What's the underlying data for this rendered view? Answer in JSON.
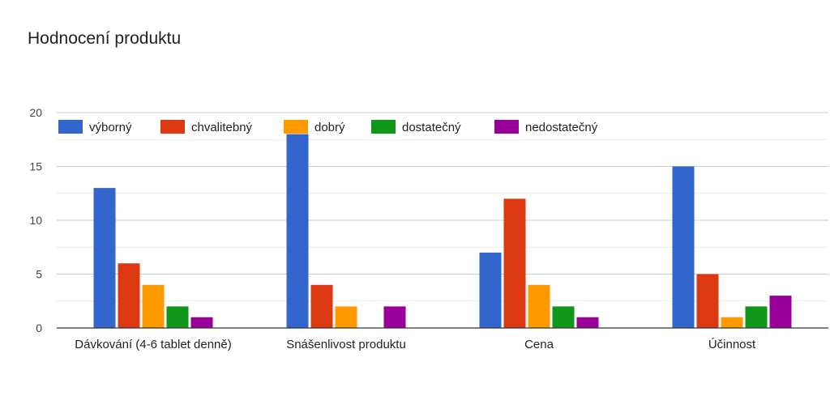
{
  "title": "Hodnocení produktu",
  "chart_data": {
    "type": "bar",
    "title": "Hodnocení produktu",
    "xlabel": "",
    "ylabel": "",
    "ylim": [
      0,
      20
    ],
    "yticks": [
      0,
      5,
      10,
      15,
      20
    ],
    "grid": true,
    "legend_position": "top",
    "categories": [
      "Dávkování (4-6 tablet denně)",
      "Snášenlivost produktu",
      "Cena",
      "Účinnost"
    ],
    "series": [
      {
        "name": "výborný",
        "color": "#3366cc",
        "values": [
          13,
          18,
          7,
          15
        ]
      },
      {
        "name": "chvalitebný",
        "color": "#dc3912",
        "values": [
          6,
          4,
          12,
          5
        ]
      },
      {
        "name": "dobrý",
        "color": "#ff9900",
        "values": [
          4,
          2,
          4,
          1
        ]
      },
      {
        "name": "dostatečný",
        "color": "#109618",
        "values": [
          2,
          0,
          2,
          2
        ]
      },
      {
        "name": "nedostatečný",
        "color": "#990099",
        "values": [
          1,
          2,
          1,
          3
        ]
      }
    ]
  }
}
